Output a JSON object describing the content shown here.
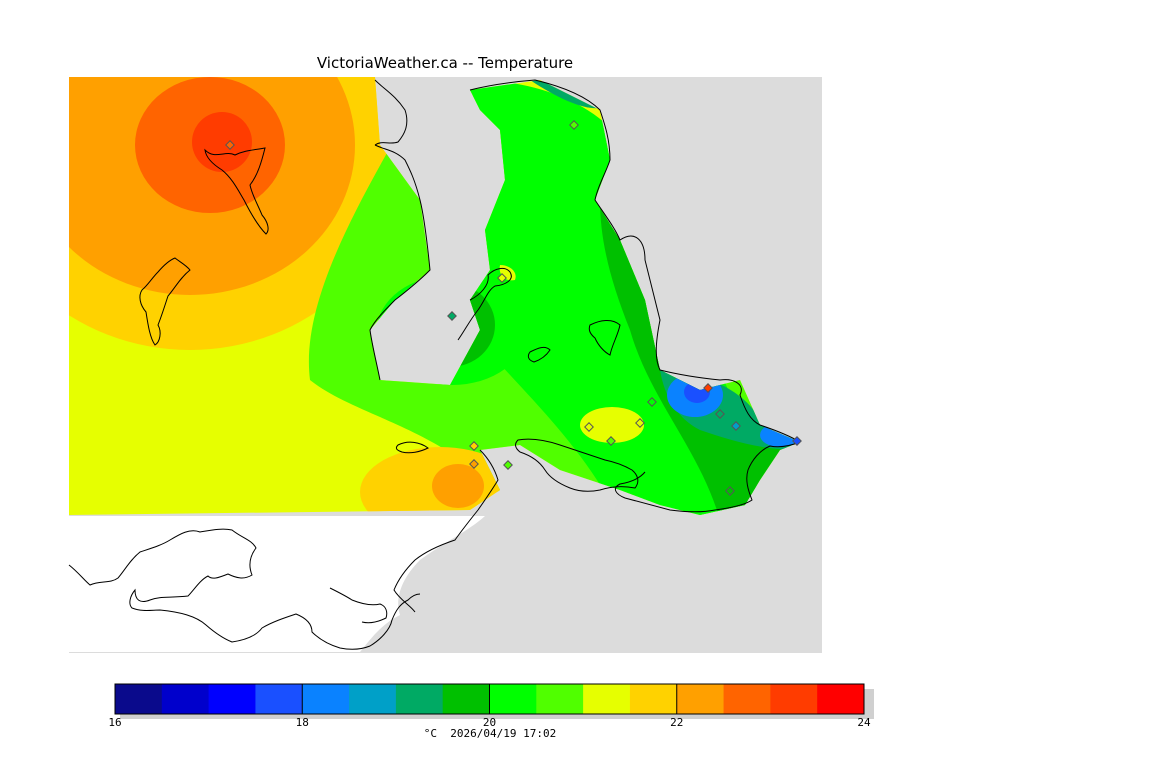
{
  "title": "VictoriaWeather.ca -- Temperature",
  "colorbar": {
    "unit_label": "°C",
    "timestamp": "2026/04/19 17:02",
    "min": 16,
    "max": 24,
    "step": 0.5,
    "tick_labels": [
      "16",
      "18",
      "20",
      "22",
      "24"
    ],
    "tick_values": [
      16,
      18,
      20,
      22,
      24
    ],
    "colors": [
      "#0a0a8c",
      "#0000cc",
      "#0000ff",
      "#1a50ff",
      "#0a82ff",
      "#00a0c8",
      "#00aa64",
      "#00c000",
      "#00ff00",
      "#50ff00",
      "#e6ff00",
      "#ffd200",
      "#ffa000",
      "#ff6400",
      "#ff3c00",
      "#ff0000"
    ]
  },
  "colors": {
    "land": "#dcdcdc",
    "no_data": "#ffffff",
    "coast": "#000000"
  }
}
